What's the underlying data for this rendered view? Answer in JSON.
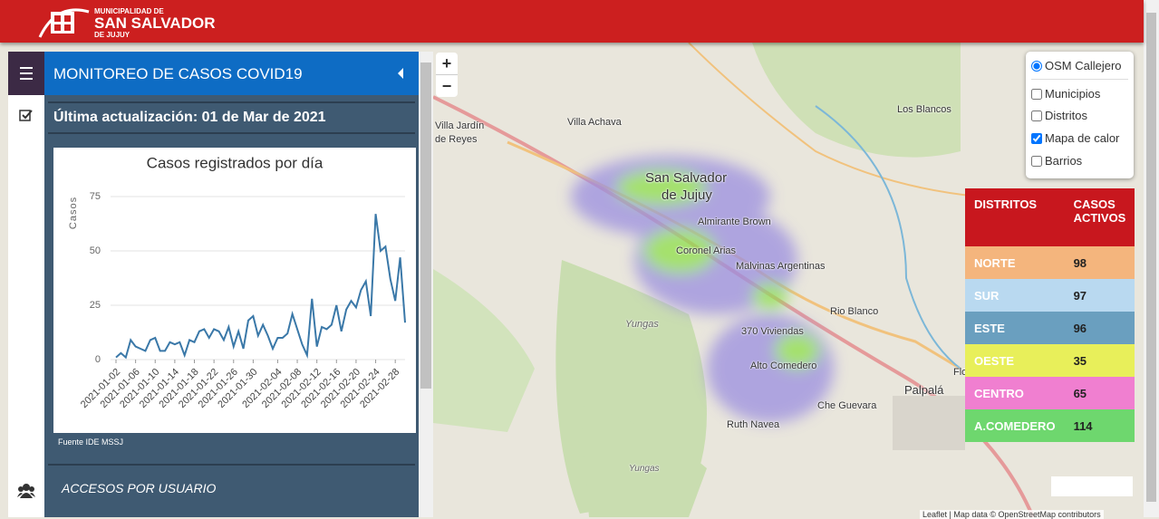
{
  "header": {
    "logo_line1": "MUNICIPALIDAD DE",
    "logo_line2": "SAN SALVADOR",
    "logo_line3": "DE JUJUY"
  },
  "panel": {
    "title": "MONITOREO DE CASOS COVID19",
    "update": "Última actualización: 01 de Mar de 2021",
    "source": "Fuente IDE MSSJ",
    "section": "ACCESOS POR USUARIO"
  },
  "chart_data": {
    "type": "line",
    "title": "Casos registrados por día",
    "y_label": "Casos",
    "color": "#3a78a8",
    "grid": true,
    "x": [
      "2021-01-02",
      "2021-01-03",
      "2021-01-04",
      "2021-01-05",
      "2021-01-06",
      "2021-01-07",
      "2021-01-08",
      "2021-01-09",
      "2021-01-10",
      "2021-01-11",
      "2021-01-12",
      "2021-01-13",
      "2021-01-14",
      "2021-01-15",
      "2021-01-16",
      "2021-01-17",
      "2021-01-18",
      "2021-01-19",
      "2021-01-20",
      "2021-01-21",
      "2021-01-22",
      "2021-01-23",
      "2021-01-24",
      "2021-01-25",
      "2021-01-26",
      "2021-01-27",
      "2021-01-28",
      "2021-01-29",
      "2021-01-30",
      "2021-01-31",
      "2021-02-01",
      "2021-02-02",
      "2021-02-03",
      "2021-02-04",
      "2021-02-05",
      "2021-02-06",
      "2021-02-07",
      "2021-02-08",
      "2021-02-09",
      "2021-02-10",
      "2021-02-11",
      "2021-02-12",
      "2021-02-13",
      "2021-02-14",
      "2021-02-15",
      "2021-02-16",
      "2021-02-17",
      "2021-02-18",
      "2021-02-19",
      "2021-02-20",
      "2021-02-21",
      "2021-02-22",
      "2021-02-23",
      "2021-02-24",
      "2021-02-25",
      "2021-02-26",
      "2021-02-27",
      "2021-02-28",
      "2021-03-01",
      "2021-03-02"
    ],
    "values": [
      1,
      3,
      1,
      9,
      6,
      5,
      4,
      9,
      10,
      4,
      4,
      8,
      7,
      8,
      2,
      9,
      8,
      13,
      14,
      10,
      14,
      13,
      9,
      15,
      6,
      13,
      5,
      18,
      20,
      11,
      16,
      11,
      5,
      10,
      10,
      12,
      21,
      14,
      7,
      2,
      28,
      6,
      15,
      14,
      16,
      25,
      13,
      23,
      27,
      24,
      32,
      36,
      20,
      67,
      50,
      52,
      37,
      27,
      47,
      17
    ],
    "xlim": [
      "2021-01-02",
      "2021-03-02"
    ],
    "xticks": [
      "2021-01-02",
      "2021-01-06",
      "2021-01-10",
      "2021-01-14",
      "2021-01-18",
      "2021-01-22",
      "2021-01-26",
      "2021-01-30",
      "2021-02-04",
      "2021-02-08",
      "2021-02-12",
      "2021-02-16",
      "2021-02-20",
      "2021-02-24",
      "2021-02-28"
    ],
    "ylim": [
      0,
      80
    ],
    "yticks": [
      0,
      25,
      50,
      75
    ]
  },
  "map": {
    "zoom_in": "+",
    "zoom_out": "−",
    "labels": [
      "Villa Achava",
      "San Salvador",
      "de Jujuy",
      "Almirante Brown",
      "Coronel Arias",
      "Malvinas Argentinas",
      "Los Blancos",
      "Rio Blanco",
      "370 Viviendas",
      "Alto Comedero",
      "Palpalá",
      "Che Guevara",
      "Ruth Navea",
      "Yungas",
      "Yungas",
      "Villa Jardín",
      "de Reyes",
      "Florida"
    ],
    "layers": [
      {
        "label": "OSM Callejero",
        "checked": true
      },
      {
        "label": "Municipios",
        "checked": false
      },
      {
        "label": "Distritos",
        "checked": false
      },
      {
        "label": "Mapa de calor",
        "checked": true
      },
      {
        "label": "Barrios",
        "checked": false
      }
    ],
    "attribution": "Leaflet | Map data © OpenStreetMap contributors"
  },
  "districts": {
    "headers": [
      "DISTRITOS",
      "CASOS ACTIVOS"
    ],
    "rows": [
      {
        "name": "NORTE",
        "cases": 98,
        "color": "#f4b57d"
      },
      {
        "name": "SUR",
        "cases": 97,
        "color": "#b9d9f0"
      },
      {
        "name": "ESTE",
        "cases": 96,
        "color": "#6a9fbf"
      },
      {
        "name": "OESTE",
        "cases": 35,
        "color": "#e8ef5a"
      },
      {
        "name": "CENTRO",
        "cases": 65,
        "color": "#f07fd0"
      },
      {
        "name": "A.COMEDERO",
        "cases": 114,
        "color": "#6ed76e"
      }
    ]
  }
}
